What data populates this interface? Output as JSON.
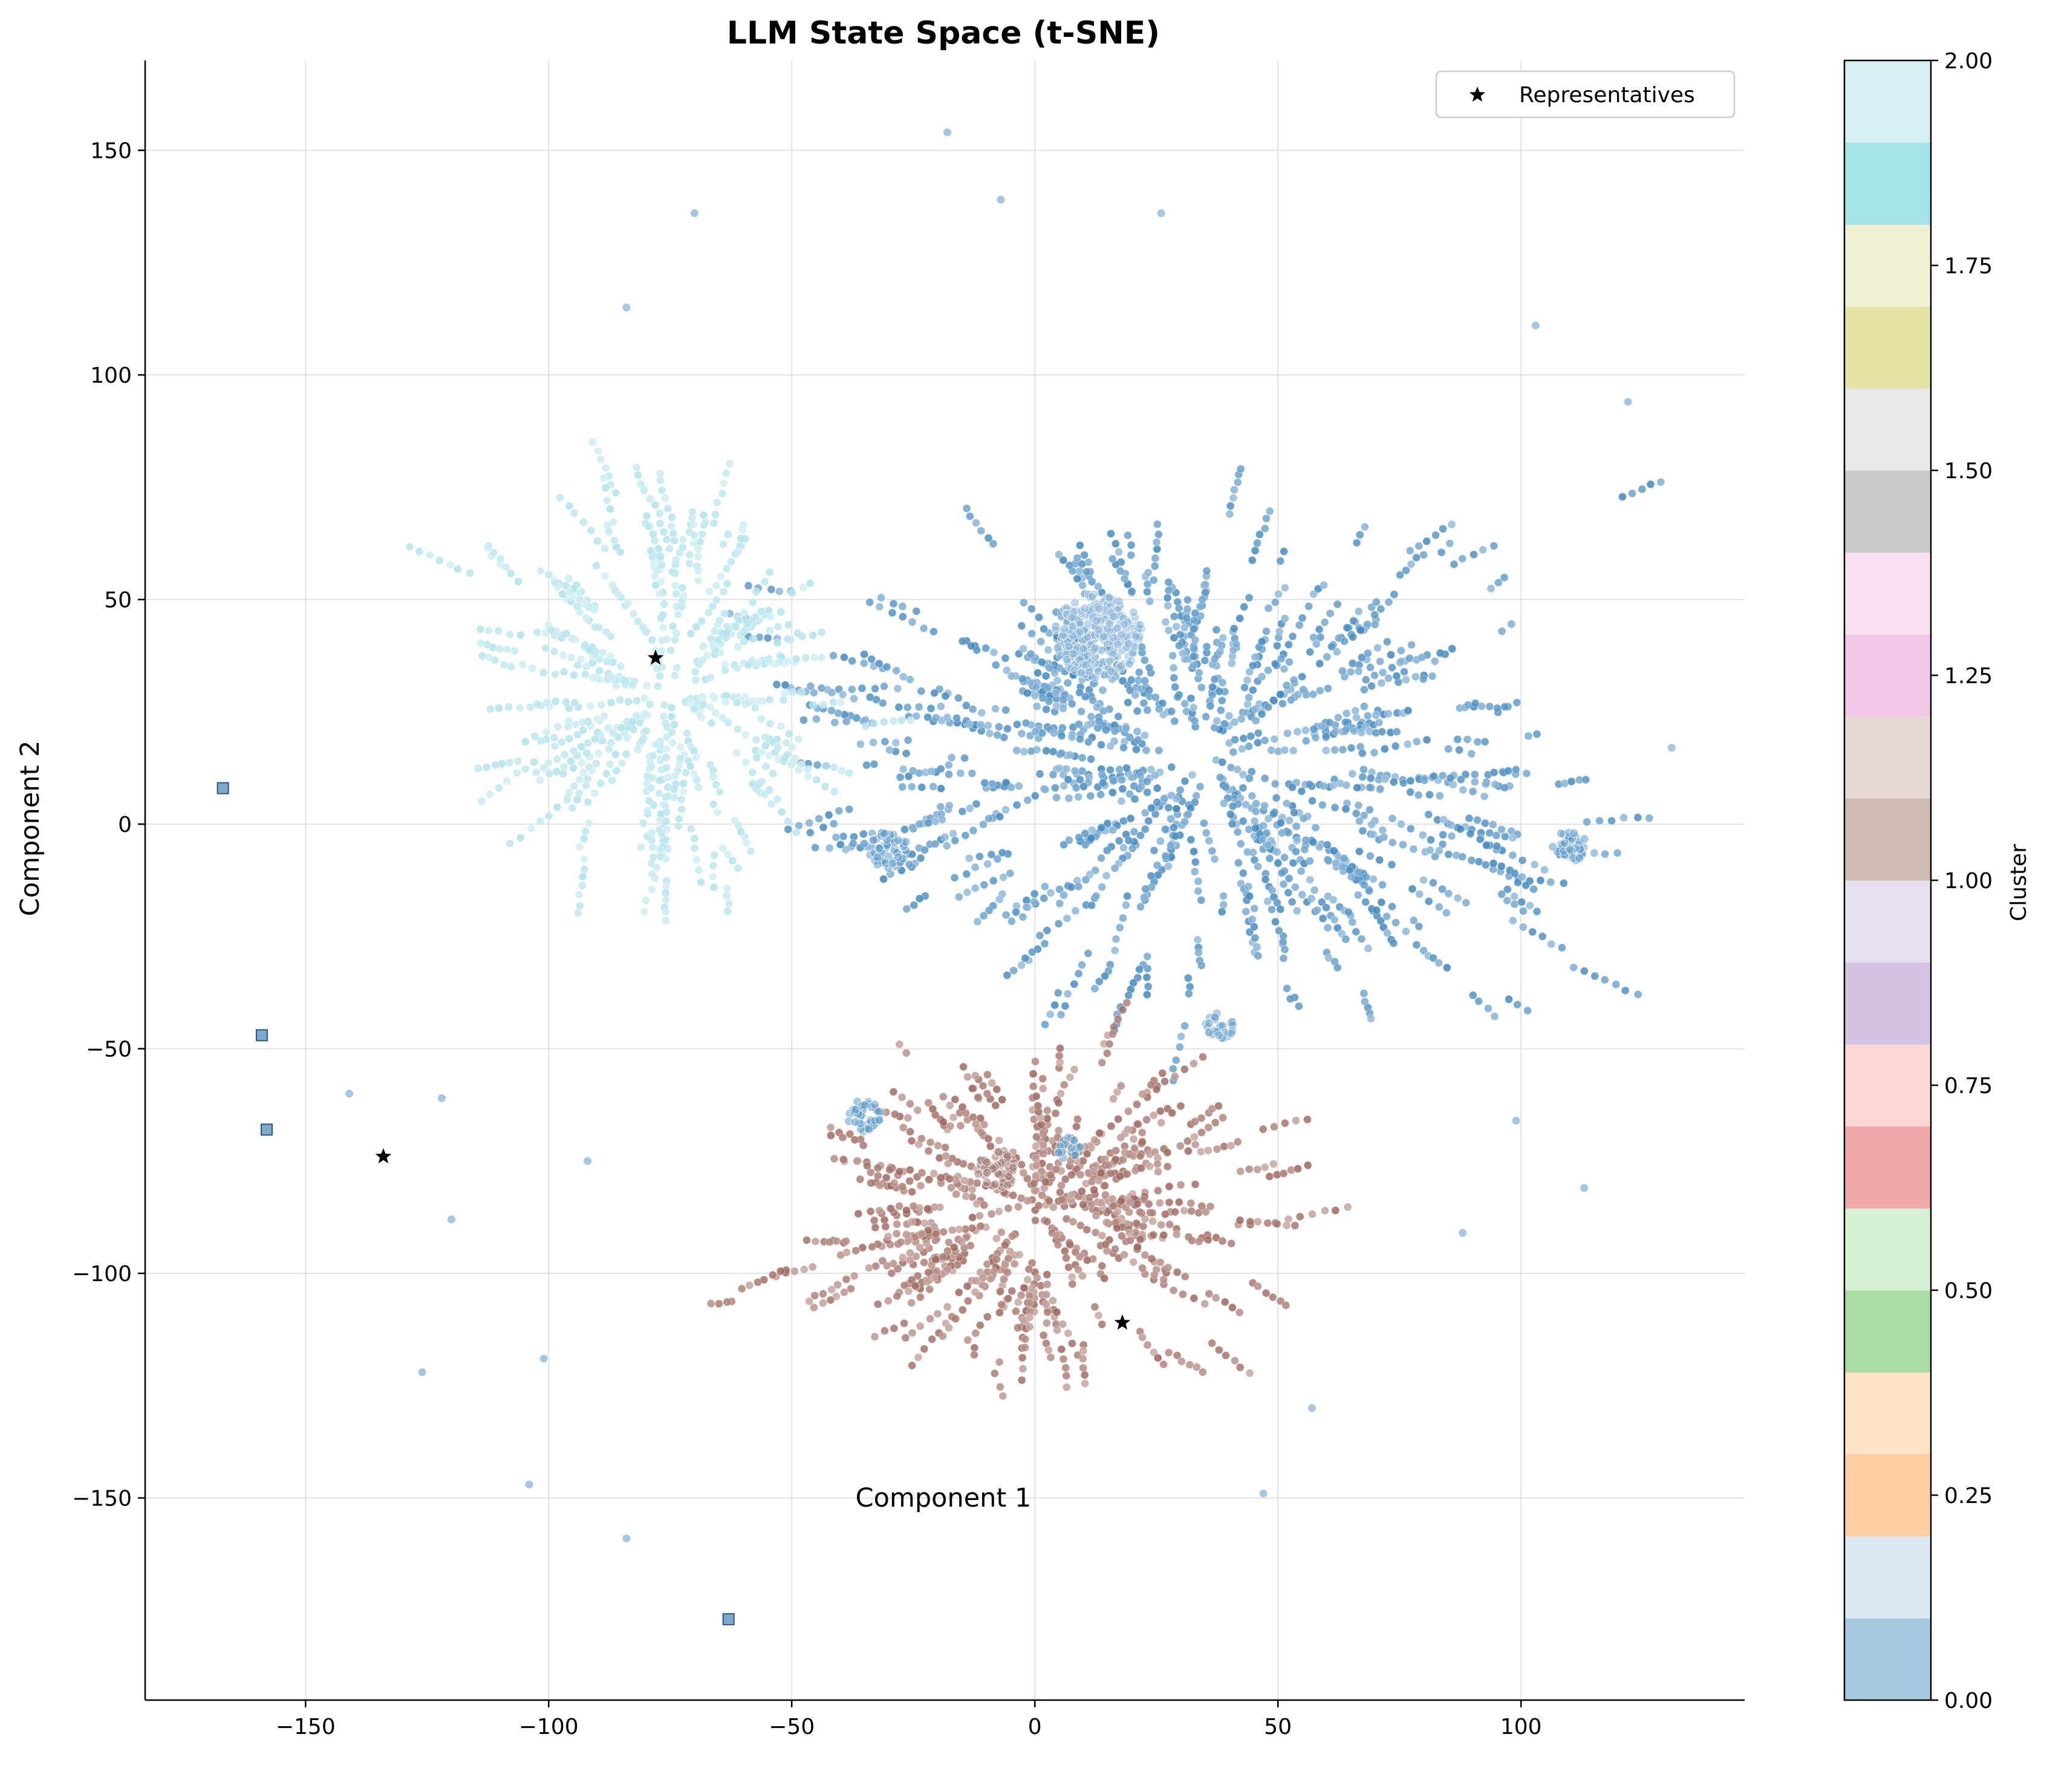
{
  "chart_data": {
    "type": "scatter",
    "title": "LLM State Space (t-SNE)",
    "xlabel": "Component 1",
    "ylabel": "Component 2",
    "xlim": [
      -183,
      146
    ],
    "ylim": [
      -195,
      170
    ],
    "xticks": [
      -150,
      -100,
      -50,
      0,
      50,
      100
    ],
    "yticks": [
      -150,
      -100,
      -50,
      0,
      50,
      100,
      150
    ],
    "grid": true,
    "legend": {
      "placement": "top-right",
      "entries": [
        "Representatives"
      ]
    },
    "colorbar": {
      "label": "Cluster",
      "range": [
        0,
        2
      ],
      "ticks": [
        "0.00",
        "0.25",
        "0.50",
        "0.75",
        "1.00",
        "1.25",
        "1.50",
        "1.75",
        "2.00"
      ],
      "colors": [
        "#a6c9e0",
        "#dce8f4",
        "#ffcda2",
        "#fee3c8",
        "#acdca6",
        "#d6f1d3",
        "#f1a8a9",
        "#fdd6d6",
        "#d4c3e4",
        "#e7e0ef",
        "#d0bbb4",
        "#e8d9d6",
        "#f1c6e6",
        "#f8e0f0",
        "#c9c9c9",
        "#e8e8e8",
        "#e2e3a4",
        "#f0f0d2",
        "#a6e4eb",
        "#d6eff3"
      ]
    },
    "series": [
      {
        "name": "Representatives",
        "marker": "star",
        "color": "#000000",
        "points": [
          [
            -78,
            37
          ],
          [
            -134,
            -74
          ],
          [
            18,
            -111
          ]
        ]
      },
      {
        "marker": "square",
        "color": "#7aaad0",
        "points": [
          [
            -167,
            8
          ],
          [
            -159,
            -47
          ],
          [
            -158,
            -68
          ],
          [
            -63,
            -177
          ]
        ]
      }
    ],
    "cluster_regions": [
      {
        "cluster": 0,
        "color": "#3d86bd",
        "center": [
          35,
          15
        ],
        "extent": [
          110,
          70
        ],
        "note": ""
      },
      {
        "cluster": 1,
        "color": "#9a6358",
        "center": [
          0,
          -85
        ],
        "extent": [
          60,
          45
        ],
        "note": ""
      },
      {
        "cluster": 2,
        "color": "#aee2ea",
        "center": [
          -75,
          30
        ],
        "extent": [
          45,
          60
        ],
        "note": ""
      }
    ],
    "dense_blobs": [
      {
        "center": [
          13,
          42
        ],
        "radius": 9,
        "color": "#8ab6d8"
      },
      {
        "center": [
          -30,
          -6
        ],
        "radius": 4,
        "color": "#5f9ccc"
      },
      {
        "center": [
          110,
          -5
        ],
        "radius": 3.5,
        "color": "#5f9ccc"
      },
      {
        "center": [
          -8,
          -77
        ],
        "radius": 4,
        "color": "#a07a72"
      },
      {
        "center": [
          38,
          -45
        ],
        "radius": 3,
        "color": "#6ea4cf"
      },
      {
        "center": [
          -35,
          -65
        ],
        "radius": 3.5,
        "color": "#5f9ccc"
      },
      {
        "center": [
          7,
          -72
        ],
        "radius": 2.5,
        "color": "#5f9ccc"
      }
    ]
  }
}
